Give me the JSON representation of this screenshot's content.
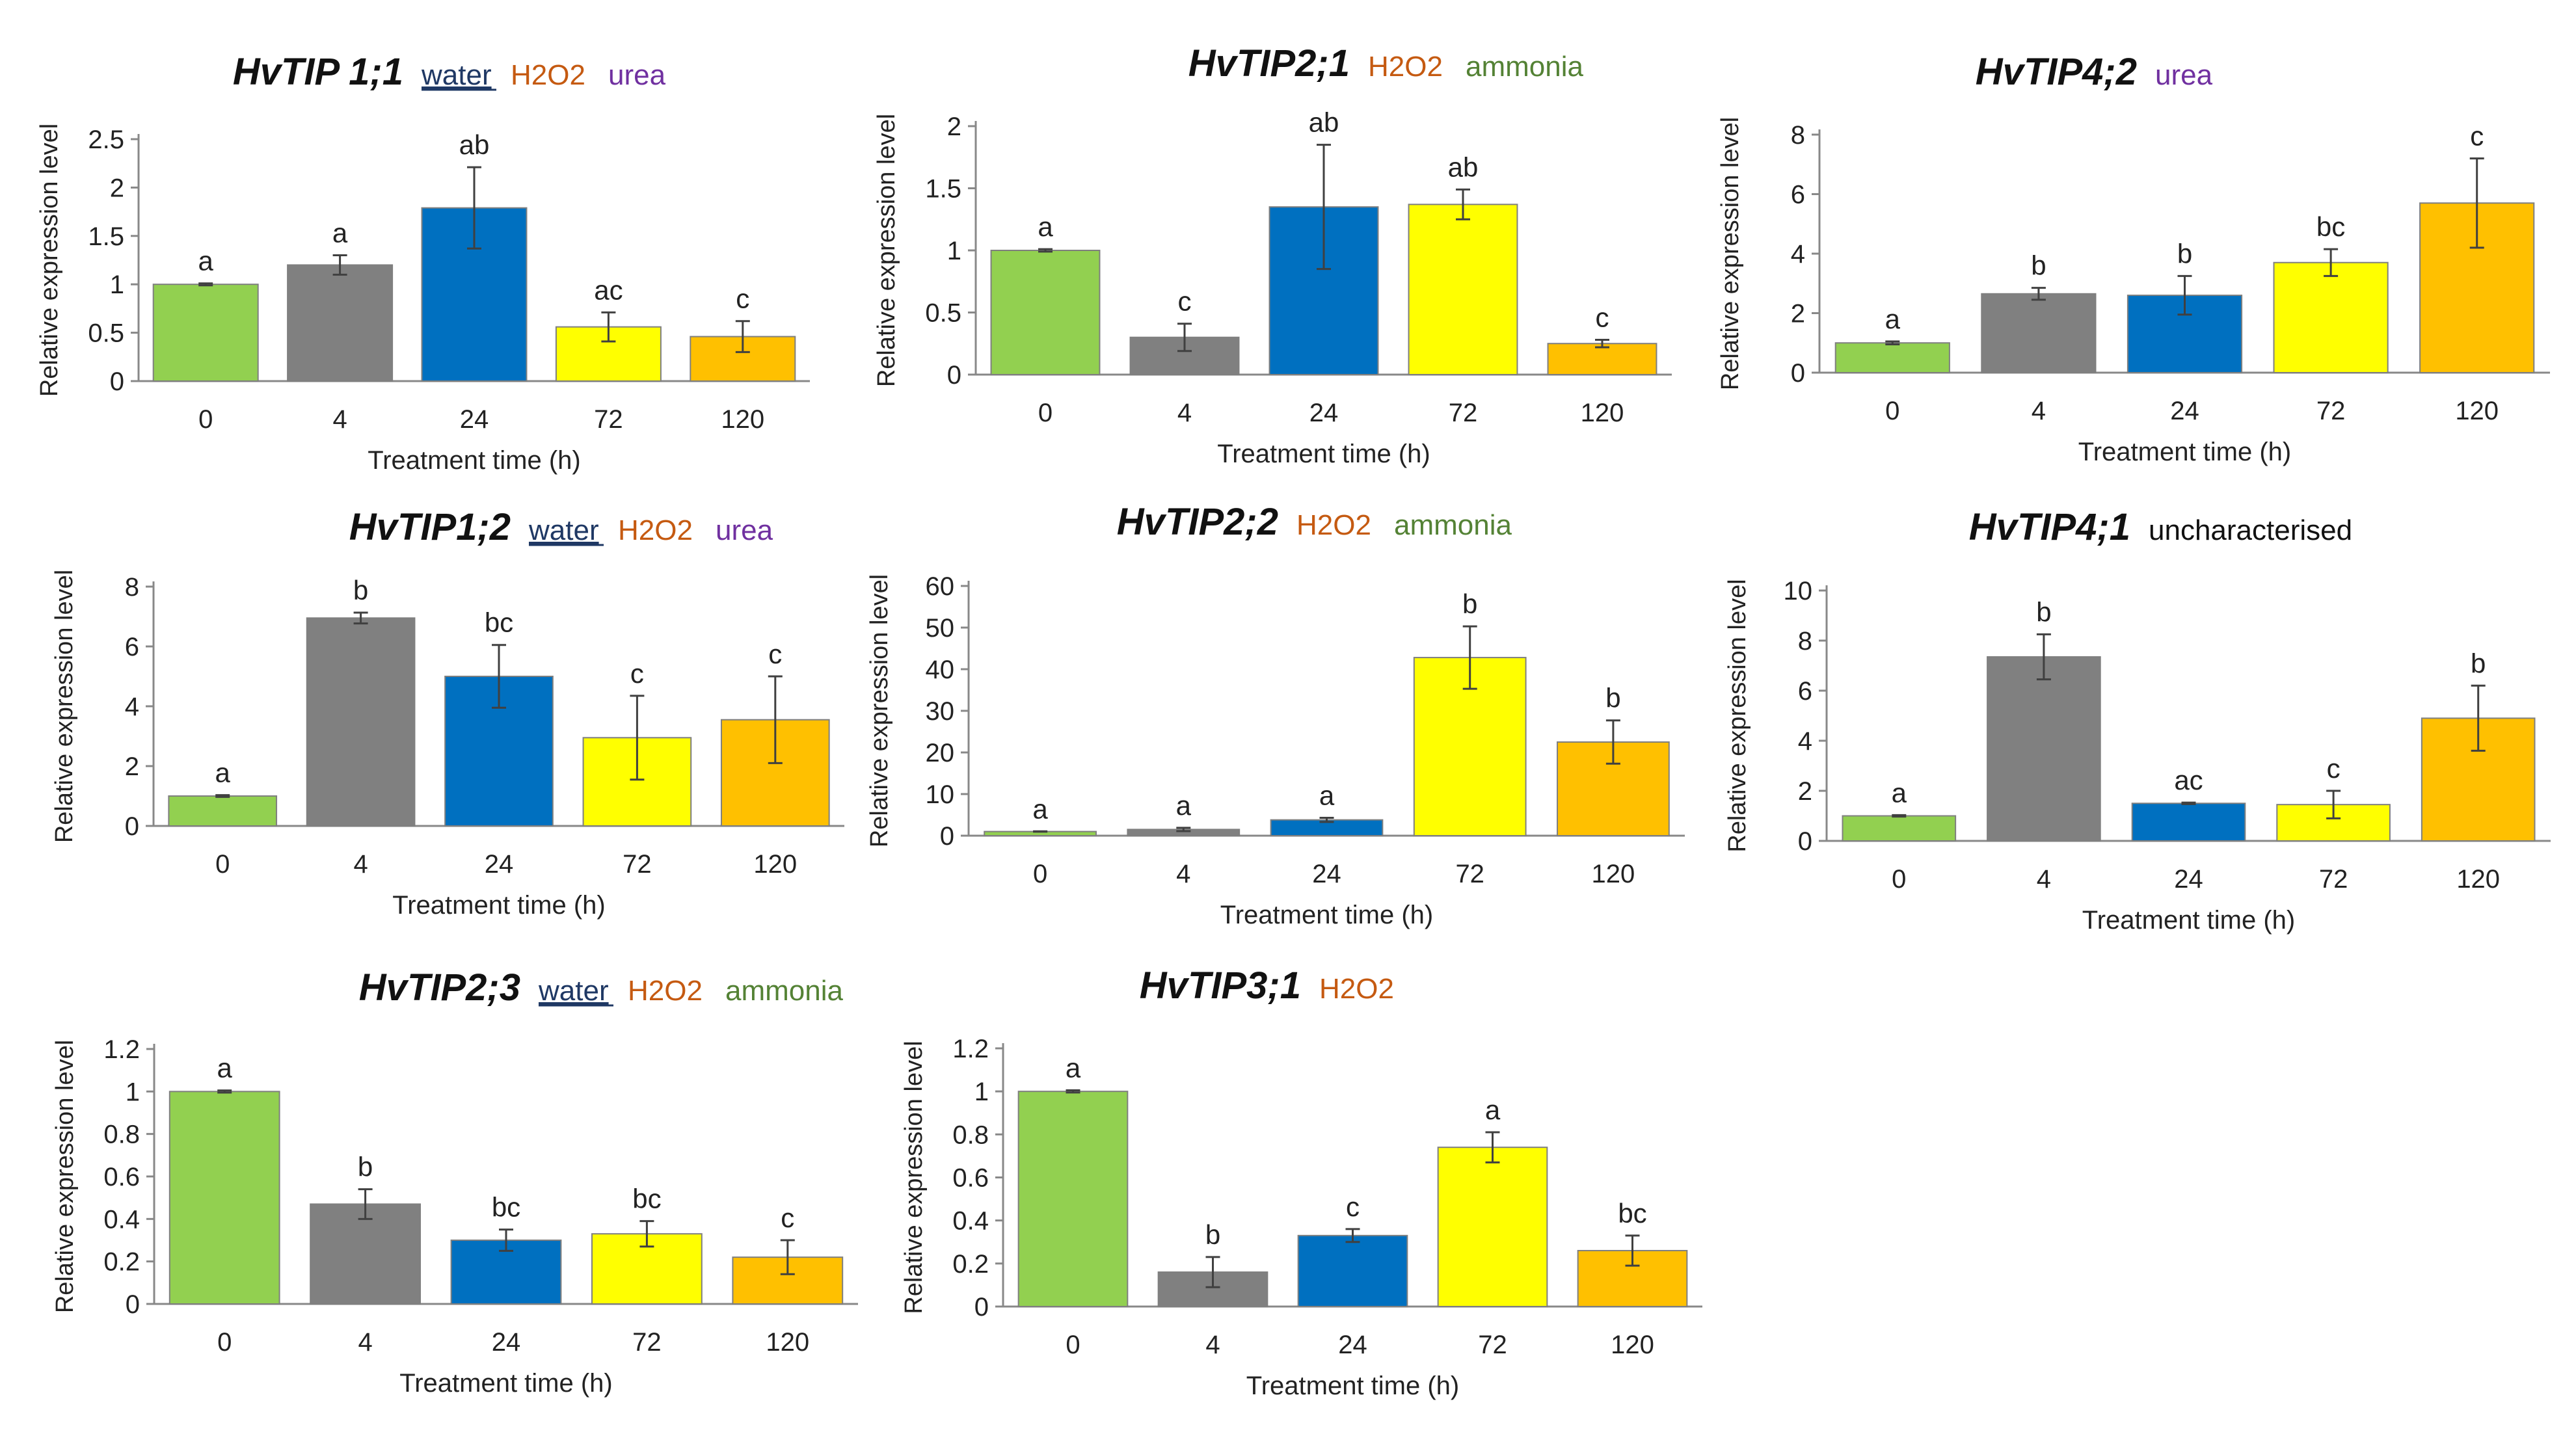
{
  "figure": {
    "x_axis_label": "Treatment time (h)",
    "y_axis_label": "Relative expression level",
    "categories": [
      "0",
      "4",
      "24",
      "72",
      "120"
    ],
    "bar_colors": [
      "#92D050",
      "#808080",
      "#0070C0",
      "#FFFF00",
      "#FFC000"
    ]
  },
  "substrate_colors": {
    "water": "#1F3864",
    "H2O2": "#C55A11",
    "urea": "#7030A0",
    "ammonia": "#548235",
    "uncharacterised": "#111111"
  },
  "chart_data": [
    {
      "type": "bar",
      "title": "HvTIP 1;1",
      "substrates": [
        {
          "text": "water",
          "kind": "water",
          "underline": true
        },
        {
          "text": "H2O2",
          "kind": "H2O2"
        },
        {
          "text": "urea",
          "kind": "urea"
        }
      ],
      "categories": [
        "0",
        "4",
        "24",
        "72",
        "120"
      ],
      "values": [
        1.0,
        1.2,
        1.79,
        0.56,
        0.46
      ],
      "errors": [
        0.01,
        0.1,
        0.42,
        0.15,
        0.16
      ],
      "letters": [
        "a",
        "a",
        "ab",
        "ac",
        "c"
      ],
      "xlabel": "Treatment time (h)",
      "ylabel": "Relative expression level",
      "ylim": [
        0,
        2.5
      ],
      "yticks": [
        "0",
        "0.5",
        "1",
        "1.5",
        "2",
        "2.5"
      ]
    },
    {
      "type": "bar",
      "title": "HvTIP2;1",
      "substrates": [
        {
          "text": "H2O2",
          "kind": "H2O2"
        },
        {
          "text": "ammonia",
          "kind": "ammonia"
        }
      ],
      "categories": [
        "0",
        "4",
        "24",
        "72",
        "120"
      ],
      "values": [
        1.0,
        0.3,
        1.35,
        1.37,
        0.25
      ],
      "errors": [
        0.01,
        0.11,
        0.5,
        0.12,
        0.03
      ],
      "letters": [
        "a",
        "c",
        "ab",
        "ab",
        "c"
      ],
      "xlabel": "Treatment time (h)",
      "ylabel": "Relative expression level",
      "ylim": [
        0,
        2
      ],
      "yticks": [
        "0",
        "0.5",
        "1",
        "1.5",
        "2"
      ]
    },
    {
      "type": "bar",
      "title": "HvTIP4;2",
      "substrates": [
        {
          "text": "urea",
          "kind": "urea"
        }
      ],
      "categories": [
        "0",
        "4",
        "24",
        "72",
        "120"
      ],
      "values": [
        1.0,
        2.65,
        2.6,
        3.7,
        5.7
      ],
      "errors": [
        0.05,
        0.2,
        0.65,
        0.45,
        1.5
      ],
      "letters": [
        "a",
        "b",
        "b",
        "bc",
        "c"
      ],
      "xlabel": "Treatment time (h)",
      "ylabel": "Relative expression level",
      "ylim": [
        0,
        8
      ],
      "yticks": [
        "0",
        "2",
        "4",
        "6",
        "8"
      ]
    },
    {
      "type": "bar",
      "title": "HvTIP1;2",
      "substrates": [
        {
          "text": "water",
          "kind": "water",
          "underline": true
        },
        {
          "text": "H2O2",
          "kind": "H2O2"
        },
        {
          "text": "urea",
          "kind": "urea"
        }
      ],
      "categories": [
        "0",
        "4",
        "24",
        "72",
        "120"
      ],
      "values": [
        1.0,
        6.95,
        5.0,
        2.95,
        3.55
      ],
      "errors": [
        0.03,
        0.18,
        1.05,
        1.4,
        1.45
      ],
      "letters": [
        "a",
        "b",
        "bc",
        "c",
        "c"
      ],
      "xlabel": "Treatment time (h)",
      "ylabel": "Relative expression level",
      "ylim": [
        0,
        8
      ],
      "yticks": [
        "0",
        "2",
        "4",
        "6",
        "8"
      ]
    },
    {
      "type": "bar",
      "title": "HvTIP2;2",
      "substrates": [
        {
          "text": "H2O2",
          "kind": "H2O2"
        },
        {
          "text": "ammonia",
          "kind": "ammonia"
        }
      ],
      "categories": [
        "0",
        "4",
        "24",
        "72",
        "120"
      ],
      "values": [
        1.0,
        1.5,
        3.8,
        42.8,
        22.5
      ],
      "errors": [
        0.05,
        0.4,
        0.5,
        7.5,
        5.2
      ],
      "letters": [
        "a",
        "a",
        "a",
        "b",
        "b"
      ],
      "xlabel": "Treatment time (h)",
      "ylabel": "Relative expression level",
      "ylim": [
        0,
        60
      ],
      "yticks": [
        "0",
        "10",
        "20",
        "30",
        "40",
        "50",
        "60"
      ]
    },
    {
      "type": "bar",
      "title": "HvTIP4;1",
      "substrates": [
        {
          "text": "uncharacterised",
          "kind": "uncharacterised"
        }
      ],
      "categories": [
        "0",
        "4",
        "24",
        "72",
        "120"
      ],
      "values": [
        1.0,
        7.35,
        1.5,
        1.45,
        4.9
      ],
      "errors": [
        0.03,
        0.9,
        0.03,
        0.55,
        1.3
      ],
      "letters": [
        "a",
        "b",
        "ac",
        "c",
        "b"
      ],
      "xlabel": "Treatment time (h)",
      "ylabel": "Relative expression level",
      "ylim": [
        0,
        10
      ],
      "yticks": [
        "0",
        "2",
        "4",
        "6",
        "8",
        "10"
      ]
    },
    {
      "type": "bar",
      "title": "HvTIP2;3",
      "substrates": [
        {
          "text": "water",
          "kind": "water",
          "underline": true
        },
        {
          "text": "H2O2",
          "kind": "H2O2"
        },
        {
          "text": "ammonia",
          "kind": "ammonia"
        }
      ],
      "categories": [
        "0",
        "4",
        "24",
        "72",
        "120"
      ],
      "values": [
        1.0,
        0.47,
        0.3,
        0.33,
        0.22
      ],
      "errors": [
        0.005,
        0.07,
        0.05,
        0.06,
        0.08
      ],
      "letters": [
        "a",
        "b",
        "bc",
        "bc",
        "c"
      ],
      "xlabel": "Treatment time (h)",
      "ylabel": "Relative expression level",
      "ylim": [
        0,
        1.2
      ],
      "yticks": [
        "0",
        "0.2",
        "0.4",
        "0.6",
        "0.8",
        "1",
        "1.2"
      ]
    },
    {
      "type": "bar",
      "title": "HvTIP3;1",
      "substrates": [
        {
          "text": "H2O2",
          "kind": "H2O2"
        }
      ],
      "categories": [
        "0",
        "4",
        "24",
        "72",
        "120"
      ],
      "values": [
        1.0,
        0.16,
        0.33,
        0.74,
        0.26
      ],
      "errors": [
        0.005,
        0.07,
        0.03,
        0.07,
        0.07
      ],
      "letters": [
        "a",
        "b",
        "c",
        "a",
        "bc"
      ],
      "xlabel": "Treatment time (h)",
      "ylabel": "Relative expression level",
      "ylim": [
        0,
        1.2
      ],
      "yticks": [
        "0",
        "0.2",
        "0.4",
        "0.6",
        "0.8",
        "1",
        "1.2"
      ]
    }
  ]
}
